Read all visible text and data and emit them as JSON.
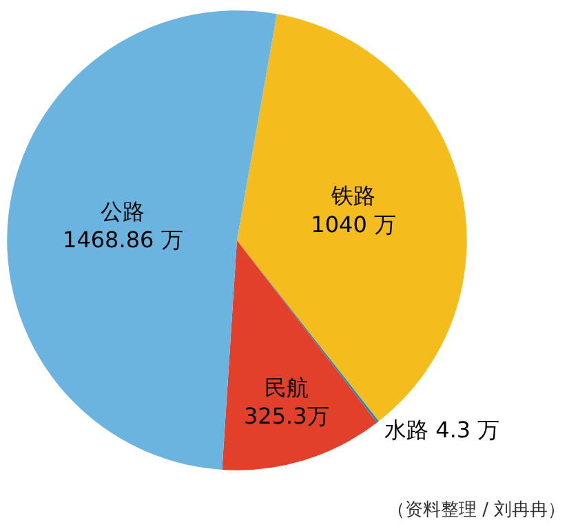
{
  "chart_data": {
    "type": "pie",
    "categories": [
      "铁路",
      "水路",
      "民航",
      "公路"
    ],
    "values": [
      1040,
      4.3,
      325.3,
      1468.86
    ],
    "value_labels": [
      "1040 万",
      "4.3 万",
      "325.3万",
      "1468.86 万"
    ],
    "colors": [
      "#f4bd1d",
      "#1a8cc0",
      "#e2402b",
      "#6cb4e0"
    ],
    "legend": false,
    "annotations": [
      "（资料整理 / 刘冉冉）"
    ]
  }
}
